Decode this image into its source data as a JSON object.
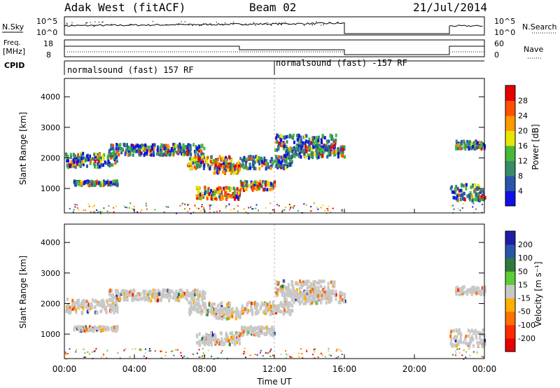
{
  "header": {
    "title": "Adak West (fitACF)",
    "beam": "Beam 02",
    "date": "21/Jul/2014"
  },
  "nsky_panel": {
    "left_label": "N.Sky",
    "left_ticks": [
      "10^5",
      "10^0"
    ],
    "right_ticks": [
      "10^5",
      "10^0"
    ],
    "right_label": "N.Search"
  },
  "freq_panel": {
    "left_label_1": "Freq.",
    "left_label_2": "[MHz]",
    "left_ticks": [
      "18",
      "8"
    ],
    "right_ticks": [
      "60",
      "0"
    ],
    "right_label": "Nave"
  },
  "cpid_panel": {
    "label": "CPID",
    "segment_1": "normalsound (fast) 157 RF",
    "segment_2": "normalsound (fast) -157 RF"
  },
  "colors": {
    "nsky_line": "#000000",
    "data_gap_start_hour": 16,
    "data_gap_end_hour": 22
  },
  "chart_data": [
    {
      "type": "heatmap",
      "name": "power-panel",
      "ylabel": "Slant Range [km]",
      "xlabel": "",
      "ylim": [
        200,
        4600
      ],
      "xlim_hours": [
        0,
        24
      ],
      "yticks": [
        "1000",
        "2000",
        "3000",
        "4000"
      ],
      "colorbar": {
        "label": "Power [dB]",
        "ticks": [
          "4",
          "8",
          "12",
          "16",
          "20",
          "24",
          "28"
        ],
        "range": [
          0,
          32
        ],
        "stops": [
          "#1010e6",
          "#2a55a8",
          "#3a8a6a",
          "#46b83a",
          "#e6e600",
          "#ff9900",
          "#ff5000",
          "#e60000"
        ]
      }
    },
    {
      "type": "heatmap",
      "name": "velocity-panel",
      "ylabel": "Slant Range [km]",
      "xlabel": "Time UT",
      "ylim": [
        200,
        4600
      ],
      "xlim_hours": [
        0,
        24
      ],
      "yticks": [
        "1000",
        "2000",
        "3000",
        "4000"
      ],
      "xticks": [
        "00:00",
        "04:00",
        "08:00",
        "12:00",
        "16:00",
        "20:00",
        "00:00"
      ],
      "colorbar": {
        "label": "Velocity [m s⁻¹]",
        "ticks": [
          "200",
          "100",
          "50",
          "15",
          "-15",
          "-50",
          "-100",
          "-200"
        ],
        "stops": [
          "#1e1ea8",
          "#2a55a8",
          "#2e7a3a",
          "#5ecc3a",
          "#c8c8c8",
          "#ffb000",
          "#ff7000",
          "#ff2a00",
          "#e60000"
        ]
      }
    }
  ]
}
